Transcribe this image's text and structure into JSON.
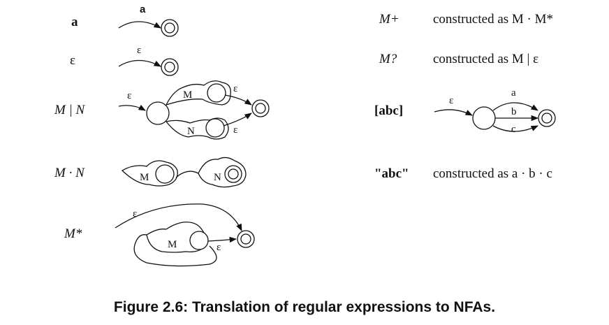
{
  "rows_left": [
    {
      "expr": "a",
      "edge": "a"
    },
    {
      "expr": "ε",
      "edge": "ε"
    },
    {
      "expr": "M | N",
      "edge": "ε",
      "m": "M",
      "n": "N",
      "eps_m": "ε",
      "eps_n": "ε"
    },
    {
      "expr": "M · N",
      "m": "M",
      "n": "N"
    },
    {
      "expr": "M*",
      "edge": "ε",
      "m": "M",
      "eps": "ε"
    }
  ],
  "rows_right": [
    {
      "expr": "M+",
      "sup": "+",
      "desc": "constructed as M · M*"
    },
    {
      "expr": "M?",
      "desc": "constructed as M | ε"
    },
    {
      "expr": "[abc]",
      "edge": "ε",
      "edges": [
        "a",
        "b",
        "c"
      ]
    },
    {
      "expr": "\"abc\"",
      "desc": "constructed as a · b · c"
    }
  ],
  "caption": "Figure 2.6: Translation of regular expressions to NFAs."
}
